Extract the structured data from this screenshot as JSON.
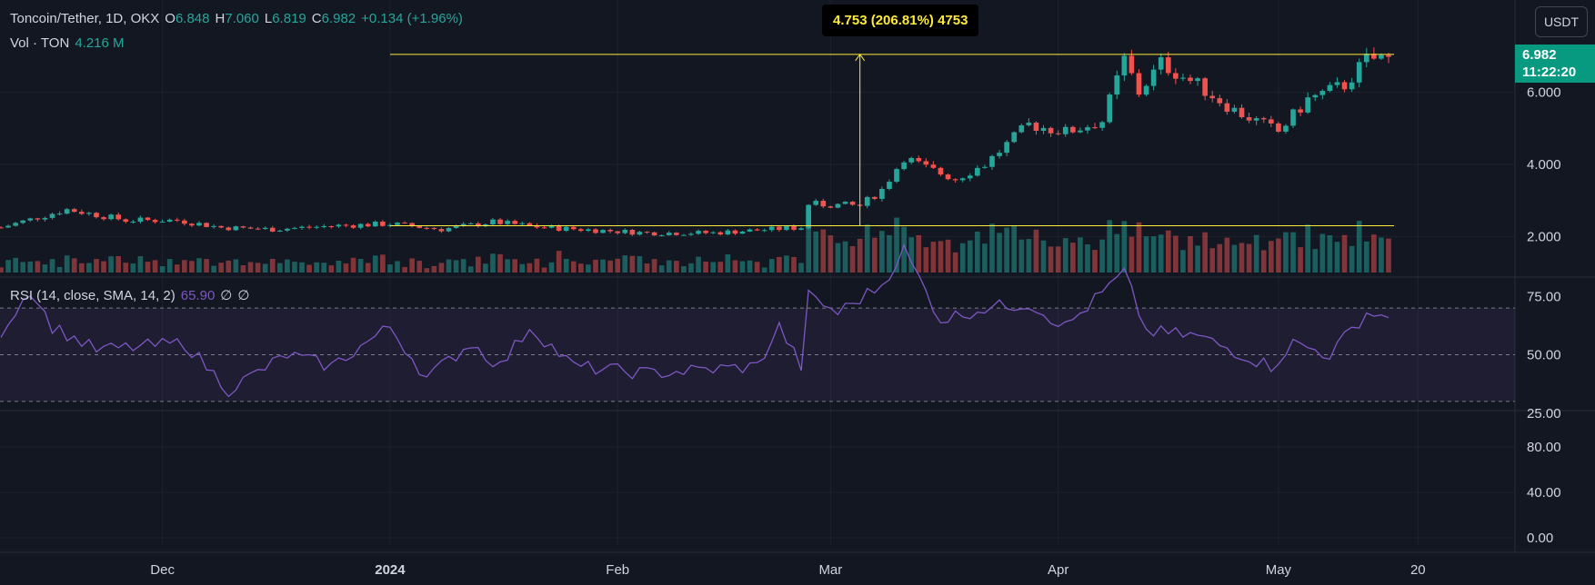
{
  "header": {
    "symbol": "Toncoin/Tether, 1D, OKX",
    "o_label": "O",
    "o_value": "6.848",
    "h_label": "H",
    "h_value": "7.060",
    "l_label": "L",
    "l_value": "6.819",
    "c_label": "C",
    "c_value": "6.982",
    "change": "+0.134 (+1.96%)",
    "vol_label": "Vol · TON",
    "vol_value": "4.216 M"
  },
  "rsi_header": {
    "label": "RSI (14, close, SMA, 14, 2)",
    "value": "65.90",
    "ma1": "∅",
    "ma2": "∅"
  },
  "currency_button": "USDT",
  "price_tag": {
    "price": "6.982",
    "countdown": "11:22:20"
  },
  "measure_label": "4.753 (206.81%) 4753",
  "colors": {
    "background": "#131722",
    "up": "#26a69a",
    "down": "#ef5350",
    "rsi_line": "#7e57c2",
    "measure": "#ffeb3b"
  },
  "chart_data": {
    "type": "candlestick",
    "x_ticks": [
      "Dec",
      "2024",
      "Feb",
      "Mar",
      "Apr",
      "May",
      "20"
    ],
    "price_ticks": [
      "2.000",
      "4.000",
      "6.000"
    ],
    "rsi_ticks": [
      "25.00",
      "50.00",
      "75.00"
    ],
    "rsi_levels": [
      30,
      50,
      70
    ],
    "rsi_range": [
      0,
      100
    ],
    "lower_ticks": [
      "0.00",
      "40.00",
      "80.00"
    ],
    "price_range": [
      1.0,
      7.4
    ],
    "measure": {
      "from": 2.298,
      "to": 7.051
    },
    "anchors": [
      [
        "2023-11-09",
        2.25
      ],
      [
        "2023-11-18",
        2.75
      ],
      [
        "2023-11-26",
        2.45
      ],
      [
        "2023-12-03",
        2.45
      ],
      [
        "2023-12-09",
        2.25
      ],
      [
        "2023-12-16",
        2.2
      ],
      [
        "2023-12-25",
        2.3
      ],
      [
        "2024-01-01",
        2.35
      ],
      [
        "2024-01-08",
        2.2
      ],
      [
        "2024-01-15",
        2.4
      ],
      [
        "2024-01-22",
        2.25
      ],
      [
        "2024-02-05",
        2.1
      ],
      [
        "2024-02-14",
        2.1
      ],
      [
        "2024-02-26",
        2.25
      ],
      [
        "2024-02-27",
        2.9
      ],
      [
        "2024-03-05",
        2.85
      ],
      [
        "2024-03-08",
        3.3
      ],
      [
        "2024-03-11",
        4.2
      ],
      [
        "2024-03-14",
        3.9
      ],
      [
        "2024-03-18",
        3.6
      ],
      [
        "2024-03-22",
        4.0
      ],
      [
        "2024-03-28",
        5.1
      ],
      [
        "2024-04-02",
        4.9
      ],
      [
        "2024-04-07",
        5.2
      ],
      [
        "2024-04-10",
        6.9
      ],
      [
        "2024-04-12",
        6.0
      ],
      [
        "2024-04-15",
        6.8
      ],
      [
        "2024-04-20",
        6.2
      ],
      [
        "2024-04-25",
        5.5
      ],
      [
        "2024-05-01",
        4.9
      ],
      [
        "2024-05-05",
        5.8
      ],
      [
        "2024-05-10",
        6.2
      ],
      [
        "2024-05-13",
        6.9
      ],
      [
        "2024-05-16",
        6.982
      ]
    ],
    "rsi": [
      [
        "2023-11-09",
        60
      ],
      [
        "2023-11-13",
        78
      ],
      [
        "2023-11-16",
        62
      ],
      [
        "2023-11-22",
        52
      ],
      [
        "2023-12-04",
        55
      ],
      [
        "2023-12-10",
        35
      ],
      [
        "2023-12-18",
        50
      ],
      [
        "2023-12-24",
        45
      ],
      [
        "2024-01-01",
        62
      ],
      [
        "2024-01-06",
        40
      ],
      [
        "2024-01-12",
        55
      ],
      [
        "2024-01-16",
        45
      ],
      [
        "2024-01-20",
        62
      ],
      [
        "2024-01-26",
        45
      ],
      [
        "2024-02-05",
        42
      ],
      [
        "2024-02-20",
        45
      ],
      [
        "2024-02-23",
        62
      ],
      [
        "2024-02-26",
        45
      ],
      [
        "2024-02-27",
        75
      ],
      [
        "2024-03-02",
        68
      ],
      [
        "2024-03-08",
        80
      ],
      [
        "2024-03-11",
        95
      ],
      [
        "2024-03-16",
        65
      ],
      [
        "2024-03-22",
        70
      ],
      [
        "2024-03-28",
        72
      ],
      [
        "2024-04-02",
        62
      ],
      [
        "2024-04-10",
        85
      ],
      [
        "2024-04-13",
        60
      ],
      [
        "2024-04-20",
        58
      ],
      [
        "2024-04-30",
        45
      ],
      [
        "2024-05-03",
        55
      ],
      [
        "2024-05-08",
        50
      ],
      [
        "2024-05-13",
        68
      ],
      [
        "2024-05-16",
        65.9
      ]
    ],
    "x_start": "2023-11-09",
    "x_end": "2024-05-16"
  }
}
